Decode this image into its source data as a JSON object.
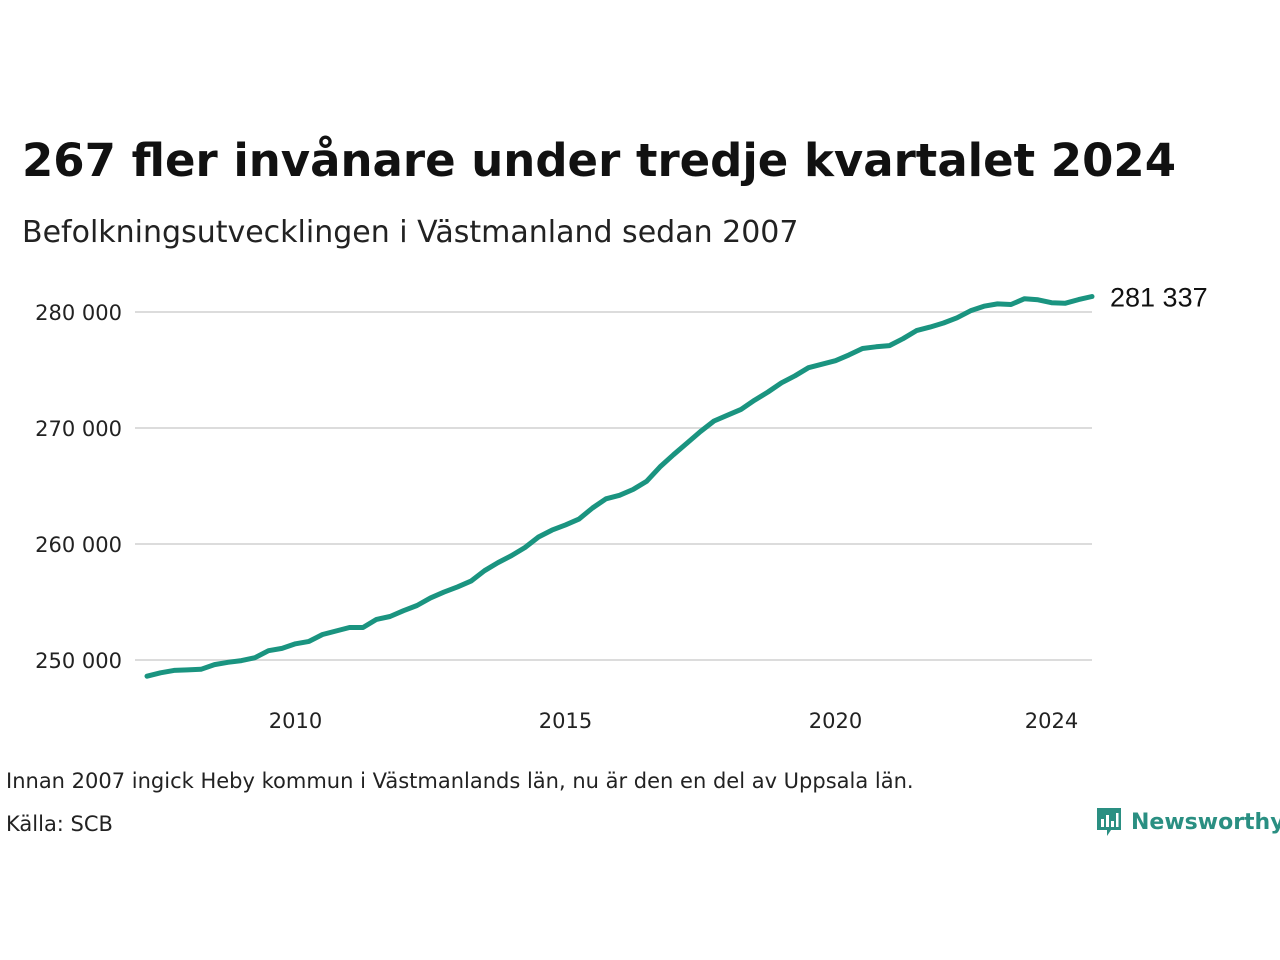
{
  "header": {
    "title": "267 fler invånare under tredje kvartalet 2024",
    "subtitle": "Befolkningsutvecklingen i Västmanland sedan 2007"
  },
  "footer": {
    "note": "Innan 2007 ingick Heby kommun i Västmanlands län, nu är den en del av Uppsala län.",
    "source": "Källa: SCB",
    "brand": "Newsworthy",
    "brand_color": "#2a8f82"
  },
  "chart_data": {
    "type": "line",
    "title": "267 fler invånare under tredje kvartalet 2024",
    "subtitle": "Befolkningsutvecklingen i Västmanland sedan 2007",
    "xlabel": "",
    "ylabel": "",
    "xlim": [
      2007.25,
      2024.75
    ],
    "ylim": [
      248000,
      282000
    ],
    "x_ticks": [
      {
        "value": 2010,
        "label": "2010"
      },
      {
        "value": 2015,
        "label": "2015"
      },
      {
        "value": 2020,
        "label": "2020"
      },
      {
        "value": 2024,
        "label": "2024"
      }
    ],
    "y_ticks": [
      {
        "value": 250000,
        "label": "250 000"
      },
      {
        "value": 260000,
        "label": "260 000"
      },
      {
        "value": 270000,
        "label": "270 000"
      },
      {
        "value": 280000,
        "label": "280 000"
      }
    ],
    "grid": true,
    "legend": "none",
    "end_label": "281 337",
    "color": "#1a9480",
    "series": [
      {
        "x": [
          2007.25,
          2007.5,
          2007.75,
          2008.0,
          2008.25,
          2008.5,
          2008.75,
          2009.0,
          2009.25,
          2009.5,
          2009.75,
          2010.0,
          2010.25,
          2010.5,
          2010.75,
          2011.0,
          2011.25,
          2011.5,
          2011.75,
          2012.0,
          2012.25,
          2012.5,
          2012.75,
          2013.0,
          2013.25,
          2013.5,
          2013.75,
          2014.0,
          2014.25,
          2014.5,
          2014.75,
          2015.0,
          2015.25,
          2015.5,
          2015.75,
          2016.0,
          2016.25,
          2016.5,
          2016.75,
          2017.0,
          2017.25,
          2017.5,
          2017.75,
          2018.0,
          2018.25,
          2018.5,
          2018.75,
          2019.0,
          2019.25,
          2019.5,
          2019.75,
          2020.0,
          2020.25,
          2020.5,
          2020.75,
          2021.0,
          2021.25,
          2021.5,
          2021.75,
          2022.0,
          2022.25,
          2022.5,
          2022.75,
          2023.0,
          2023.25,
          2023.5,
          2023.75,
          2024.0,
          2024.25,
          2024.5,
          2024.75
        ],
        "y": [
          248600,
          248900,
          249100,
          249150,
          249200,
          249600,
          249800,
          249950,
          250200,
          250800,
          251000,
          251400,
          251600,
          252200,
          252500,
          252800,
          252800,
          253500,
          253750,
          254250,
          254700,
          255350,
          255850,
          256300,
          256800,
          257700,
          258400,
          259000,
          259700,
          260600,
          261200,
          261650,
          262150,
          263100,
          263900,
          264200,
          264700,
          265400,
          266650,
          267700,
          268700,
          269700,
          270600,
          271100,
          271600,
          272400,
          273100,
          273900,
          274500,
          275200,
          275500,
          275800,
          276300,
          276850,
          277000,
          277100,
          277700,
          278400,
          278700,
          279050,
          279500,
          280100,
          280500,
          280700,
          280650,
          281150,
          281050,
          280800,
          280750,
          281070,
          281337
        ]
      }
    ]
  }
}
